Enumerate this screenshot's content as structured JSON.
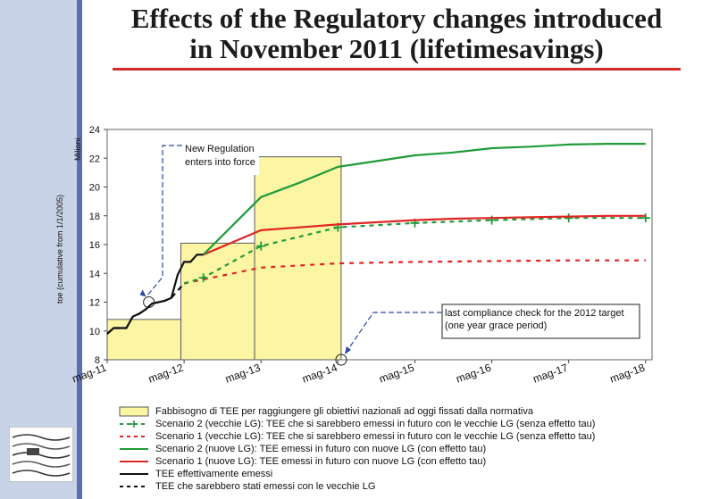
{
  "page": {
    "title_line1": "Effects of the Regulatory changes introduced",
    "title_line2": "in November 2011 (lifetimesavings)"
  },
  "colors": {
    "area": "#fbf5a4",
    "area_edge": "#5a5a5a",
    "green": "#1f9b3a",
    "red": "#e02424",
    "black": "#111111",
    "sidebar": "#c9d3e8",
    "title_rule": "#d42a2a"
  },
  "chart_data": {
    "type": "line",
    "title": "",
    "ylabel": "toe (cumulative from 1/1/2005)",
    "yunit": "Milioni",
    "ylim": [
      8,
      24
    ],
    "yticks": [
      8,
      10,
      12,
      14,
      16,
      18,
      20,
      22,
      24
    ],
    "xlim": [
      0,
      85
    ],
    "xticks": [
      {
        "label": "mag-11",
        "x": 0
      },
      {
        "label": "mag-12",
        "x": 12
      },
      {
        "label": "mag-13",
        "x": 24
      },
      {
        "label": "mag-14",
        "x": 36
      },
      {
        "label": "mag-15",
        "x": 48
      },
      {
        "label": "mag-16",
        "x": 60
      },
      {
        "label": "mag-17",
        "x": 72
      },
      {
        "label": "mag-18",
        "x": 84
      }
    ],
    "area_step": {
      "name": "Fabbisogno di TEE per raggiungere gli obiettivi nazionali ad oggi fissati dalla normativa",
      "steps": [
        {
          "x0": 0,
          "x1": 11.5,
          "y": 10.8
        },
        {
          "x0": 11.5,
          "x1": 23,
          "y": 16.1
        },
        {
          "x0": 23,
          "x1": 36.5,
          "y": 22.1
        }
      ]
    },
    "series": [
      {
        "name": "TEE effettivamente emessi",
        "style": "solid-black",
        "x": [
          0,
          1,
          3,
          4,
          5,
          6,
          7,
          8,
          9,
          10,
          11,
          12,
          13,
          14,
          15
        ],
        "y": [
          9.8,
          10.2,
          10.2,
          11.0,
          11.2,
          11.5,
          11.9,
          12.0,
          12.1,
          12.3,
          13.9,
          14.8,
          14.8,
          15.3,
          15.3
        ]
      },
      {
        "name": "TEE che sarebbero stati emessi con le vecchie LG",
        "style": "dashed-black",
        "x": [
          0,
          1,
          3,
          4,
          5,
          6,
          7,
          8,
          9,
          10,
          11,
          12
        ],
        "y": [
          9.8,
          10.2,
          10.2,
          11.0,
          11.2,
          11.5,
          11.9,
          12.0,
          12.1,
          12.3,
          12.8,
          13.3
        ]
      },
      {
        "name": "Scenario 2 (nuove LG): TEE emessi in futuro con nuove LG (con effetto tau)",
        "style": "solid-green",
        "x": [
          15,
          24,
          30,
          36,
          42,
          48,
          54,
          60,
          66,
          72,
          78,
          84
        ],
        "y": [
          15.3,
          19.3,
          20.3,
          21.4,
          21.8,
          22.2,
          22.4,
          22.7,
          22.8,
          22.95,
          23.0,
          23.0
        ]
      },
      {
        "name": "Scenario 1 (nuove LG): TEE emessi in futuro con nuove LG (con effetto tau)",
        "style": "solid-red",
        "x": [
          15,
          24,
          30,
          36,
          42,
          48,
          54,
          60,
          66,
          72,
          78,
          84
        ],
        "y": [
          15.3,
          17.0,
          17.2,
          17.4,
          17.55,
          17.7,
          17.8,
          17.85,
          17.9,
          17.95,
          18.0,
          18.0
        ]
      },
      {
        "name": "Scenario 2 (vecchie LG): TEE che si sarebbero emessi in futuro con le vecchie LG (senza effetto tau)",
        "style": "dashed-green-plus",
        "x": [
          12,
          15,
          24,
          36,
          48,
          60,
          72,
          84
        ],
        "y": [
          13.3,
          13.7,
          15.9,
          17.2,
          17.5,
          17.7,
          17.85,
          17.85
        ]
      },
      {
        "name": "Scenario 1 (vecchie LG): TEE che si sarebbero emessi in futuro con le vecchie LG (senza effetto tau)",
        "style": "dashed-red",
        "x": [
          12,
          24,
          36,
          48,
          60,
          72,
          84
        ],
        "y": [
          13.3,
          14.4,
          14.7,
          14.8,
          14.85,
          14.9,
          14.9
        ]
      }
    ],
    "annotations": [
      {
        "text_line1": "New Regulation",
        "text_line2": "enters into force",
        "target_x": 6.5,
        "target_y": 12.0
      },
      {
        "text_line1": "last compliance check for the 2012 target",
        "text_line2": "(one year grace period)",
        "target_x": 36.5,
        "target_y": 8.0
      }
    ]
  }
}
